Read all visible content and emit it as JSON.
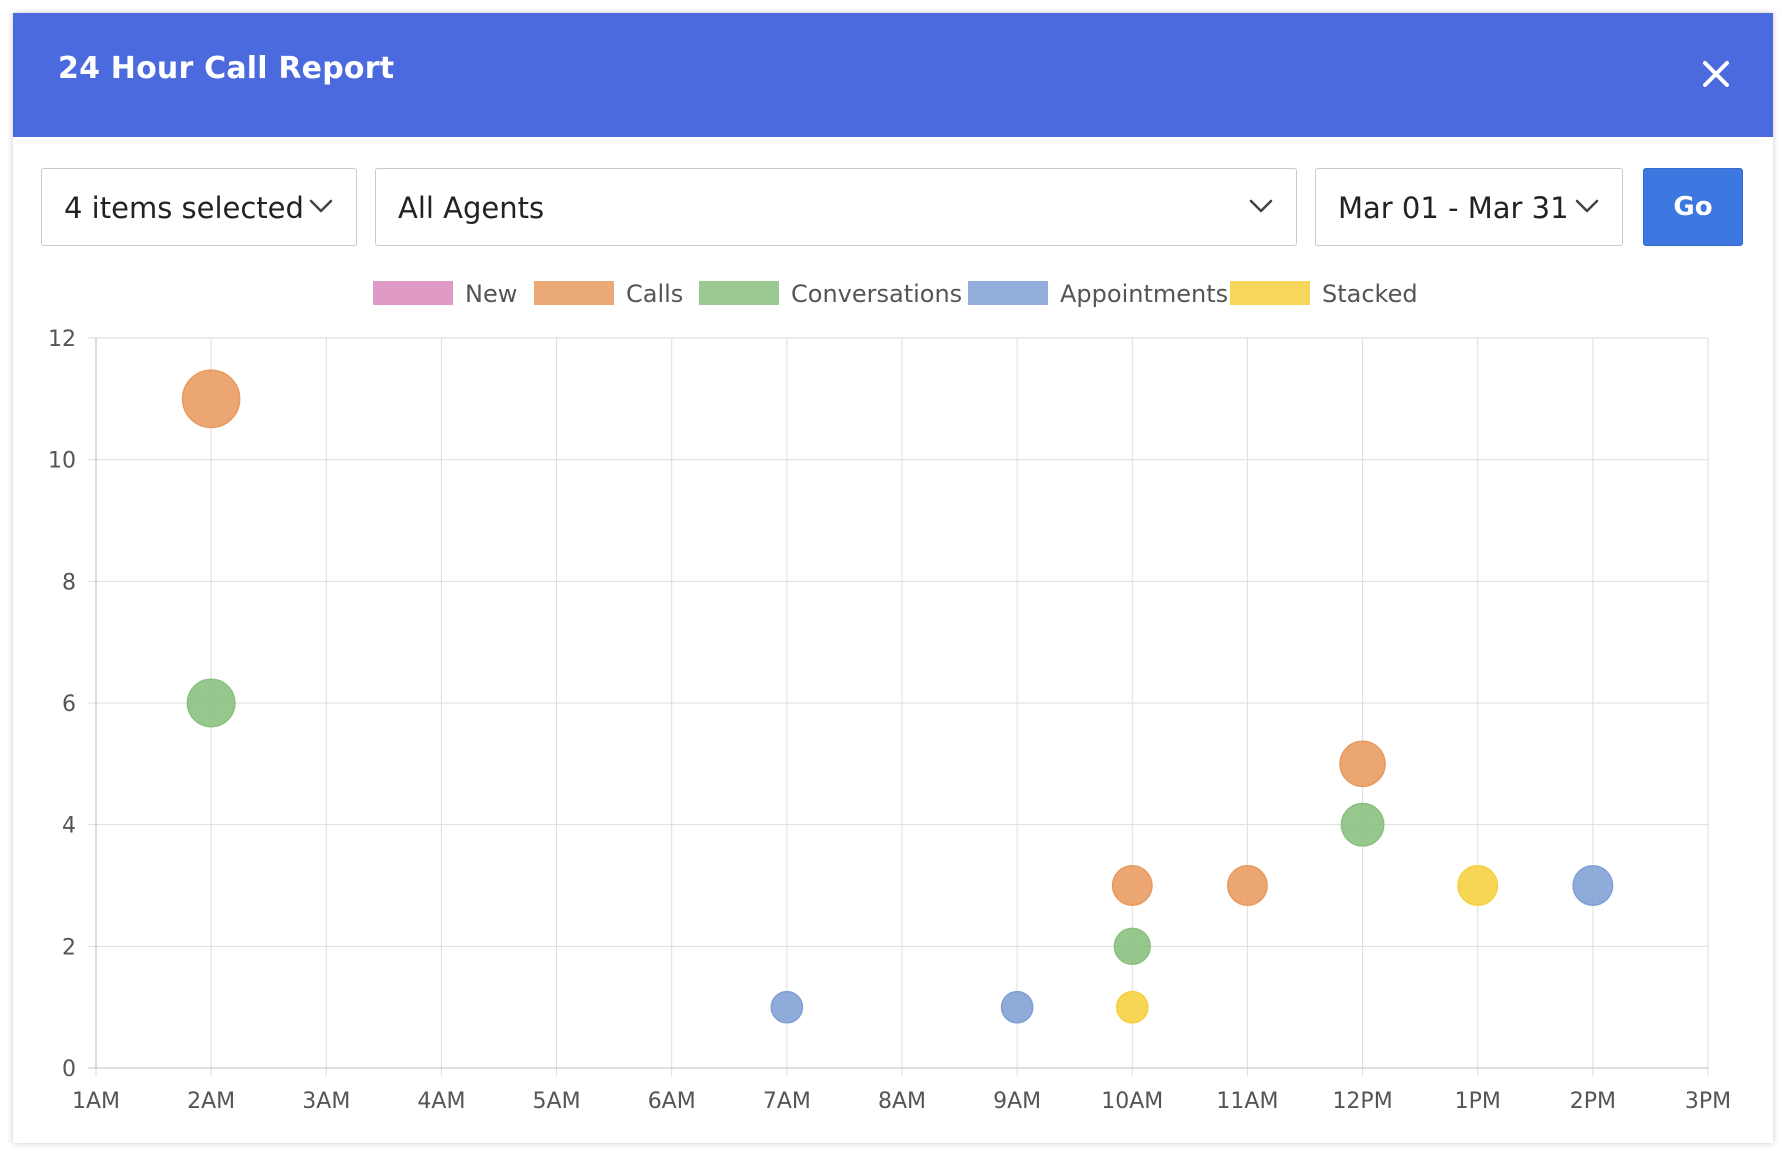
{
  "modal": {
    "title": "24 Hour Call Report"
  },
  "filters": {
    "items_selected": "4 items selected",
    "agents": "All Agents",
    "date_range": "Mar 01 - Mar 31",
    "go_label": "Go"
  },
  "icons": {
    "close": "close-icon",
    "dropdown": "chevron-down-icon"
  },
  "chart_data": {
    "type": "bubble",
    "x_categories": [
      "1AM",
      "2AM",
      "3AM",
      "4AM",
      "5AM",
      "6AM",
      "7AM",
      "8AM",
      "9AM",
      "10AM",
      "11AM",
      "12PM",
      "1PM",
      "2PM",
      "3PM"
    ],
    "ylim": [
      0,
      12
    ],
    "y_ticks": [
      0,
      2,
      4,
      6,
      8,
      10,
      12
    ],
    "grid": true,
    "legend_position": "top",
    "series": [
      {
        "name": "New",
        "color": "#d98abb",
        "points": []
      },
      {
        "name": "Calls",
        "color": "#e89a5f",
        "points": [
          {
            "x": "2AM",
            "y": 11
          },
          {
            "x": "10AM",
            "y": 3
          },
          {
            "x": "11AM",
            "y": 3
          },
          {
            "x": "12PM",
            "y": 5
          }
        ]
      },
      {
        "name": "Conversations",
        "color": "#88c07e",
        "points": [
          {
            "x": "2AM",
            "y": 6
          },
          {
            "x": "10AM",
            "y": 2
          },
          {
            "x": "12PM",
            "y": 4
          }
        ]
      },
      {
        "name": "Appointments",
        "color": "#7f9fd4",
        "points": [
          {
            "x": "7AM",
            "y": 1
          },
          {
            "x": "9AM",
            "y": 1
          },
          {
            "x": "2PM",
            "y": 3
          }
        ]
      },
      {
        "name": "Stacked",
        "color": "#f5d03c",
        "points": [
          {
            "x": "10AM",
            "y": 1
          },
          {
            "x": "1PM",
            "y": 3
          }
        ]
      }
    ]
  }
}
